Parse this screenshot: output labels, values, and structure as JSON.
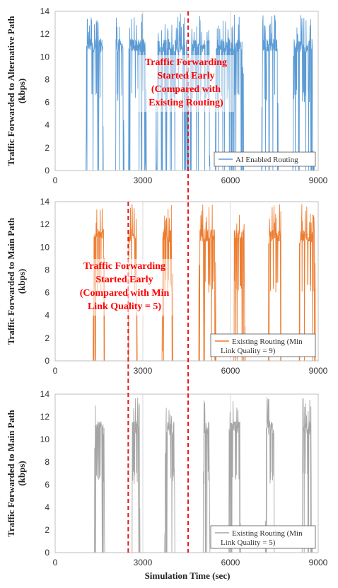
{
  "chart_data": [
    {
      "type": "line",
      "ylabel": "Traffic Forwarded to Alternative Path (kbps)",
      "xlabel": "",
      "xlim": [
        0,
        9000
      ],
      "ylim": [
        0,
        14
      ],
      "x_ticks": [
        "0",
        "3000",
        "6000",
        "9000"
      ],
      "y_ticks": [
        "0",
        "2",
        "4",
        "6",
        "8",
        "10",
        "12",
        "14"
      ],
      "grid": "x",
      "legend_position": "bottom-right",
      "series": [
        {
          "name": "AI Enabled Routing",
          "color": "#5b9bd5",
          "bursts": [
            [
              1060,
              1660
            ],
            [
              2060,
              2360
            ],
            [
              2500,
              3120
            ],
            [
              3440,
              4560
            ],
            [
              4620,
              5320
            ],
            [
              5450,
              6460
            ],
            [
              7050,
              7660
            ],
            [
              8120,
              8860
            ]
          ],
          "burst_levels": [
            6,
            11
          ]
        }
      ],
      "annotation": "Traffic Forwarding Started Early (Compared with Existing Routing)"
    },
    {
      "type": "line",
      "ylabel": "Traffic Forwarded to Main Path (kbps)",
      "xlabel": "",
      "xlim": [
        0,
        9000
      ],
      "ylim": [
        0,
        14
      ],
      "x_ticks": [
        "0",
        "3000",
        "6000",
        "9000"
      ],
      "y_ticks": [
        "0",
        "2",
        "4",
        "6",
        "8",
        "10",
        "12",
        "14"
      ],
      "grid": "x",
      "legend_position": "bottom-right",
      "series": [
        {
          "name": "Existing Routing (Min Link Quality = 9)",
          "color": "#ed7d31",
          "bursts": [
            [
              1300,
              1680
            ],
            [
              2500,
              2800
            ],
            [
              3650,
              4020
            ],
            [
              4900,
              5500
            ],
            [
              6100,
              6500
            ],
            [
              7300,
              7750
            ],
            [
              8350,
              8900
            ]
          ],
          "burst_levels": [
            6,
            11
          ]
        }
      ],
      "annotation": "Traffic Forwarding Started Early (Compared with Min Link Quality = 5)"
    },
    {
      "type": "line",
      "ylabel": "Traffic Forwarded to Main Path (kbps)",
      "xlabel": "Simulation Time (sec)",
      "xlim": [
        0,
        9000
      ],
      "ylim": [
        0,
        14
      ],
      "x_ticks": [
        "0",
        "3000",
        "6000",
        "9000"
      ],
      "y_ticks": [
        "0",
        "2",
        "4",
        "6",
        "8",
        "10",
        "12",
        "14"
      ],
      "grid": "x",
      "legend_position": "bottom-right",
      "series": [
        {
          "name": "Existing Routing (Min Link Quality = 5)",
          "color": "#a5a5a5",
          "bursts": [
            [
              1350,
              1700
            ],
            [
              2620,
              2900
            ],
            [
              3750,
              4100
            ],
            [
              5050,
              5300
            ],
            [
              5950,
              6350
            ],
            [
              7200,
              7500
            ],
            [
              8450,
              8800
            ]
          ],
          "burst_levels": [
            6,
            11
          ]
        }
      ],
      "annotation": ""
    }
  ],
  "reference_lines": [
    {
      "x": 4550,
      "panels": [
        0,
        1,
        2
      ],
      "color": "#e8191d",
      "style": "dashed"
    },
    {
      "x": 2500,
      "panels": [
        1,
        2
      ],
      "color": "#e8191d",
      "style": "dashed"
    }
  ]
}
